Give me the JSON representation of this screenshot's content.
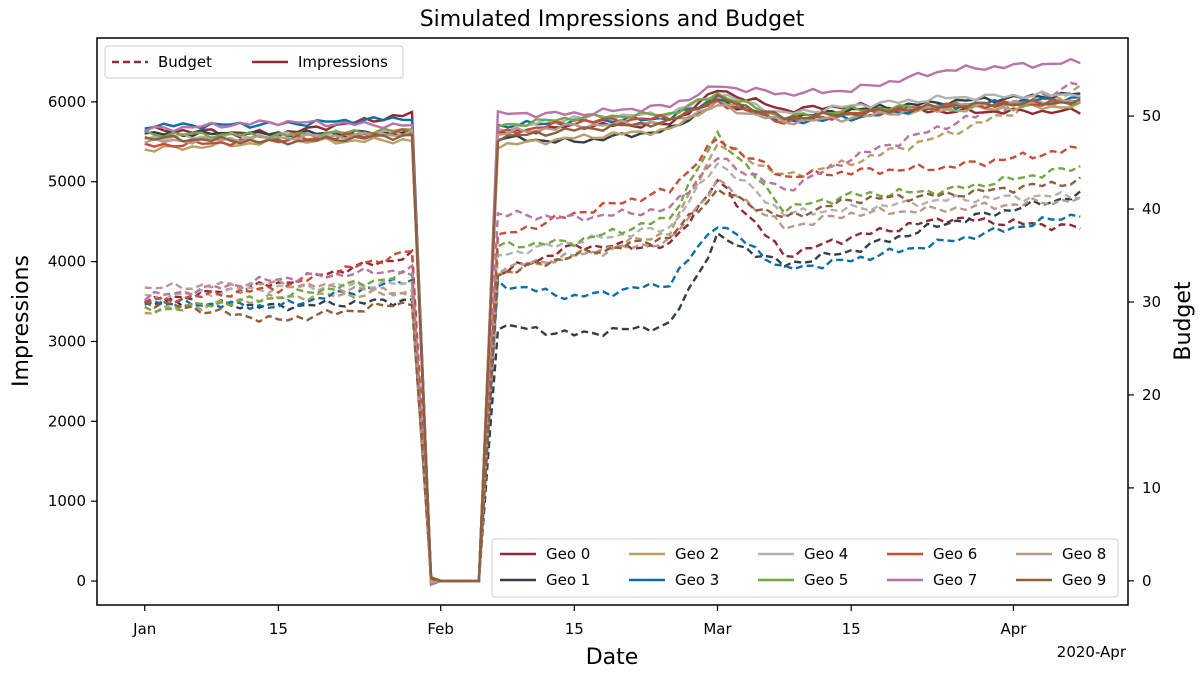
{
  "chart_data": {
    "type": "line",
    "title": "Simulated Impressions and Budget",
    "xlabel": "Date",
    "ylabel_left": "Impressions",
    "ylabel_right": "Budget",
    "x_offset_label": "2020-Apr",
    "x_ticks": [
      {
        "label": "Jan",
        "date": "2020-01-01"
      },
      {
        "label": "15",
        "date": "2020-01-15"
      },
      {
        "label": "Feb",
        "date": "2020-02-01"
      },
      {
        "label": "15",
        "date": "2020-02-15"
      },
      {
        "label": "Mar",
        "date": "2020-03-01"
      },
      {
        "label": "15",
        "date": "2020-03-15"
      },
      {
        "label": "Apr",
        "date": "2020-04-01"
      }
    ],
    "xlim": [
      "2019-12-27",
      "2020-04-13"
    ],
    "ylim_left": [
      -300,
      6800
    ],
    "ylim_right": [
      -2.6,
      58.4
    ],
    "y_ticks_left": [
      0,
      1000,
      2000,
      3000,
      4000,
      5000,
      6000
    ],
    "y_ticks_right": [
      0,
      10,
      20,
      30,
      40,
      50
    ],
    "style_legend": {
      "placement": "upper-left",
      "entries": [
        {
          "label": "Budget",
          "style": "dashed",
          "color": "#8f2a35"
        },
        {
          "label": "Impressions",
          "style": "solid",
          "color": "#8f2a35"
        }
      ]
    },
    "geo_legend": {
      "placement": "lower-right",
      "entries": [
        {
          "label": "Geo 0",
          "color": "#8f2a35"
        },
        {
          "label": "Geo 1",
          "color": "#333e48"
        },
        {
          "label": "Geo 2",
          "color": "#b8a068"
        },
        {
          "label": "Geo 3",
          "color": "#0b6fa7"
        },
        {
          "label": "Geo 4",
          "color": "#b2b2b2"
        },
        {
          "label": "Geo 5",
          "color": "#74a845"
        },
        {
          "label": "Geo 6",
          "color": "#c94c39"
        },
        {
          "label": "Geo 7",
          "color": "#b874a6"
        },
        {
          "label": "Geo 8",
          "color": "#b89a8a"
        },
        {
          "label": "Geo 9",
          "color": "#8f5f3c"
        }
      ]
    },
    "series": [
      {
        "name": "Geo 0",
        "color": "#8f2a35",
        "impressions": [
          5650,
          5600,
          5850,
          0,
          0,
          5600,
          5700,
          5720,
          6150,
          5900,
          5950,
          5880,
          5880
        ],
        "budget": [
          30,
          32,
          35,
          0,
          0,
          33,
          36,
          36,
          43,
          35,
          37,
          39,
          38
        ]
      },
      {
        "name": "Geo 1",
        "color": "#333e48",
        "impressions": [
          5600,
          5600,
          5620,
          0,
          0,
          5550,
          5500,
          5650,
          6000,
          5800,
          5900,
          6000,
          6100
        ],
        "budget": [
          30,
          29.5,
          30.2,
          0,
          0,
          27.5,
          26.5,
          27.5,
          37,
          34,
          35.5,
          38.5,
          41.5
        ]
      },
      {
        "name": "Geo 2",
        "color": "#b8a068",
        "impressions": [
          5400,
          5500,
          5520,
          0,
          0,
          5450,
          5550,
          5650,
          6000,
          5800,
          5850,
          5900,
          5950
        ],
        "budget": [
          29,
          30.5,
          31,
          0,
          0,
          33,
          35,
          37.5,
          47,
          43.5,
          45,
          48,
          53
        ]
      },
      {
        "name": "Geo 3",
        "color": "#0b6fa7",
        "impressions": [
          5700,
          5720,
          5800,
          0,
          0,
          5700,
          5750,
          5800,
          6050,
          5750,
          5800,
          5950,
          6050
        ],
        "budget": [
          30,
          29.5,
          32.5,
          0,
          0,
          32,
          30.5,
          32,
          38.5,
          33.5,
          34.5,
          36.5,
          39.5
        ]
      },
      {
        "name": "Geo 4",
        "color": "#b2b2b2",
        "impressions": [
          5550,
          5580,
          5620,
          0,
          0,
          5650,
          5800,
          5850,
          6100,
          5850,
          5950,
          6050,
          6100
        ],
        "budget": [
          30.5,
          31.5,
          32,
          0,
          0,
          35,
          36.5,
          38,
          45,
          39.5,
          40,
          41,
          41.5
        ]
      },
      {
        "name": "Geo 5",
        "color": "#74a845",
        "impressions": [
          5600,
          5580,
          5650,
          0,
          0,
          5700,
          5800,
          5850,
          6100,
          5800,
          5900,
          5950,
          6000
        ],
        "budget": [
          29,
          30.5,
          33,
          0,
          0,
          36,
          36.5,
          39,
          48,
          40,
          41.5,
          42,
          44.5
        ]
      },
      {
        "name": "Geo 6",
        "color": "#c94c39",
        "impressions": [
          5450,
          5520,
          5620,
          0,
          0,
          5600,
          5750,
          5800,
          6000,
          5750,
          5850,
          5950,
          6000
        ],
        "budget": [
          30,
          31.5,
          35.5,
          0,
          0,
          37,
          39.5,
          42,
          47.5,
          43.5,
          44,
          44.5,
          46.5
        ]
      },
      {
        "name": "Geo 7",
        "color": "#b874a6",
        "impressions": [
          5650,
          5750,
          5700,
          0,
          0,
          5850,
          5850,
          5950,
          6200,
          6100,
          6150,
          6400,
          6500
        ],
        "budget": [
          30.5,
          32.5,
          33.5,
          0,
          0,
          39.5,
          39,
          40,
          45.5,
          42,
          45.5,
          49,
          53.5
        ]
      },
      {
        "name": "Geo 8",
        "color": "#b89a8a",
        "impressions": [
          5500,
          5550,
          5600,
          0,
          0,
          5600,
          5700,
          5750,
          5950,
          5750,
          5800,
          5950,
          6000
        ],
        "budget": [
          31.5,
          32,
          31,
          0,
          0,
          33.5,
          35,
          36.5,
          43,
          38,
          39.5,
          40,
          41
        ]
      },
      {
        "name": "Geo 9",
        "color": "#8f5f3c",
        "impressions": [
          5550,
          5500,
          5580,
          0,
          0,
          5550,
          5650,
          5750,
          6050,
          5800,
          5850,
          5950,
          6000
        ],
        "budget": [
          30,
          28,
          30,
          0,
          0,
          33,
          35,
          37,
          42,
          39,
          41,
          41.5,
          43
        ]
      }
    ],
    "x_dates": [
      "2020-01-01",
      "2020-01-15",
      "2020-01-29",
      "2020-01-31",
      "2020-02-05",
      "2020-02-07",
      "2020-02-15",
      "2020-02-25",
      "2020-03-01",
      "2020-03-08",
      "2020-03-15",
      "2020-03-25",
      "2020-04-08"
    ],
    "grid": false
  }
}
